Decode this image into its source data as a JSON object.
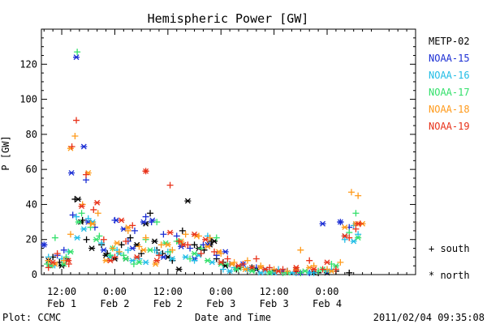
{
  "chart_data": {
    "type": "scatter",
    "title": "Hemispheric Power [GW]",
    "ylabel": "P [GW]",
    "xlabel": "Date and Time",
    "ylim": [
      0,
      140
    ],
    "yticks": [
      0,
      20,
      40,
      60,
      80,
      100,
      120
    ],
    "xlim_hours": [
      7.4,
      92
    ],
    "xticks": [
      {
        "hour": 12,
        "time": "12:00",
        "date": "Feb 1"
      },
      {
        "hour": 24,
        "time": "0:00",
        "date": "Feb 2"
      },
      {
        "hour": 36,
        "time": "12:00",
        "date": "Feb 2"
      },
      {
        "hour": 48,
        "time": "0:00",
        "date": "Feb 3"
      },
      {
        "hour": 60,
        "time": "12:00",
        "date": "Feb 3"
      },
      {
        "hour": 72,
        "time": "0:00",
        "date": "Feb 4"
      }
    ],
    "legend_position": "right",
    "marker_legend": {
      "south": "+ south",
      "north": "* north"
    },
    "series": [
      {
        "name": "METP-02",
        "color": "#000000"
      },
      {
        "name": "NOAA-15",
        "color": "#1c2fd4"
      },
      {
        "name": "NOAA-16",
        "color": "#22bde6"
      },
      {
        "name": "NOAA-17",
        "color": "#33e06b"
      },
      {
        "name": "NOAA-18",
        "color": "#ff9a1a"
      },
      {
        "name": "NOAA-19",
        "color": "#e8321a"
      }
    ],
    "points": {
      "METP-02": {
        "south": [
          [
            10,
            10
          ],
          [
            11.5,
            7
          ],
          [
            13,
            9
          ],
          [
            15,
            43
          ],
          [
            16.7,
            31
          ],
          [
            17.6,
            20
          ],
          [
            21,
            17
          ],
          [
            22.3,
            12
          ],
          [
            25.5,
            17
          ],
          [
            27.5,
            21
          ],
          [
            30,
            12
          ],
          [
            32,
            35
          ],
          [
            33.5,
            14
          ],
          [
            34.8,
            12
          ],
          [
            37,
            8
          ],
          [
            39.3,
            25
          ],
          [
            42,
            17
          ],
          [
            44.2,
            14
          ],
          [
            45.8,
            19
          ],
          [
            47,
            9
          ],
          [
            48.5,
            7
          ],
          [
            51.5,
            3
          ],
          [
            55,
            4
          ],
          [
            59,
            2
          ],
          [
            63,
            2
          ],
          [
            66,
            1
          ],
          [
            70,
            1
          ],
          [
            74,
            2
          ],
          [
            77,
            1
          ]
        ],
        "north": [
          [
            9,
            8
          ],
          [
            12,
            5
          ],
          [
            15.7,
            43
          ],
          [
            16.3,
            30
          ],
          [
            18.8,
            15
          ],
          [
            22,
            11
          ],
          [
            24,
            9
          ],
          [
            26.5,
            9
          ],
          [
            29,
            17
          ],
          [
            31,
            29
          ],
          [
            33,
            19
          ],
          [
            36,
            10
          ],
          [
            38.5,
            3
          ],
          [
            40.5,
            42
          ],
          [
            43,
            15
          ],
          [
            45.5,
            17
          ],
          [
            46.5,
            19
          ],
          [
            49,
            5
          ],
          [
            52,
            4
          ],
          [
            56,
            3
          ],
          [
            60,
            2
          ],
          [
            65,
            2
          ],
          [
            69,
            1
          ],
          [
            72,
            1
          ]
        ]
      },
      "NOAA-15": {
        "south": [
          [
            8,
            17
          ],
          [
            11,
            11
          ],
          [
            12.5,
            14
          ],
          [
            14.5,
            34
          ],
          [
            17.5,
            54
          ],
          [
            19.5,
            27
          ],
          [
            24,
            31
          ],
          [
            27,
            19
          ],
          [
            28.5,
            25
          ],
          [
            31,
            33
          ],
          [
            32.3,
            30
          ],
          [
            35,
            23
          ],
          [
            38,
            22
          ],
          [
            41,
            15
          ],
          [
            44,
            17
          ],
          [
            47,
            11
          ],
          [
            50,
            6
          ],
          [
            52.5,
            4
          ],
          [
            56,
            4
          ],
          [
            59,
            2
          ],
          [
            63,
            2
          ],
          [
            68,
            1
          ],
          [
            72,
            2
          ],
          [
            75,
            30
          ],
          [
            77,
            27
          ]
        ],
        "north": [
          [
            8,
            17
          ],
          [
            14.2,
            58
          ],
          [
            15.3,
            124
          ],
          [
            17,
            73
          ],
          [
            18,
            30
          ],
          [
            21.5,
            14
          ],
          [
            24.3,
            31
          ],
          [
            26,
            26
          ],
          [
            28,
            15
          ],
          [
            30.5,
            30
          ],
          [
            32.5,
            31
          ],
          [
            35,
            10
          ],
          [
            39,
            16
          ],
          [
            42,
            9
          ],
          [
            45,
            17
          ],
          [
            49,
            13
          ],
          [
            53,
            6
          ],
          [
            58,
            3
          ],
          [
            62,
            2
          ],
          [
            66,
            1
          ],
          [
            71,
            29
          ],
          [
            75,
            30
          ]
        ]
      },
      "NOAA-16": {
        "south": [
          [
            9,
            10
          ],
          [
            12,
            9
          ],
          [
            13.5,
            13
          ],
          [
            15.3,
            33
          ],
          [
            18,
            32
          ],
          [
            21,
            18
          ],
          [
            24.5,
            14
          ],
          [
            27,
            14
          ],
          [
            29.5,
            9
          ],
          [
            33,
            14
          ],
          [
            36,
            13
          ],
          [
            39,
            18
          ],
          [
            42,
            8
          ],
          [
            45,
            22
          ],
          [
            48.5,
            3
          ],
          [
            51,
            4
          ],
          [
            54,
            3
          ],
          [
            58,
            2
          ],
          [
            61,
            3
          ],
          [
            65,
            1
          ],
          [
            69,
            1
          ],
          [
            73,
            3
          ],
          [
            76,
            20
          ],
          [
            78,
            28
          ],
          [
            79,
            23
          ]
        ],
        "north": [
          [
            10,
            5
          ],
          [
            15.5,
            21
          ],
          [
            17,
            26
          ],
          [
            19,
            30
          ],
          [
            23,
            10
          ],
          [
            25,
            12
          ],
          [
            28,
            8
          ],
          [
            31,
            7
          ],
          [
            34,
            12
          ],
          [
            37,
            9
          ],
          [
            40,
            10
          ],
          [
            43,
            11
          ],
          [
            46,
            7
          ],
          [
            50,
            2
          ],
          [
            54,
            3
          ],
          [
            57,
            1
          ],
          [
            60,
            1
          ],
          [
            64,
            1
          ],
          [
            68,
            1
          ],
          [
            72,
            2
          ],
          [
            76,
            22
          ],
          [
            78,
            19
          ]
        ]
      },
      "NOAA-17": {
        "south": [
          [
            8.7,
            6
          ],
          [
            10.5,
            21
          ],
          [
            13,
            10
          ],
          [
            15.5,
            127
          ],
          [
            16.5,
            35
          ],
          [
            18.5,
            27
          ],
          [
            20.5,
            22
          ],
          [
            23,
            11
          ],
          [
            26,
            11
          ],
          [
            28.3,
            6
          ],
          [
            31,
            20
          ],
          [
            33.5,
            30
          ],
          [
            36.5,
            13
          ],
          [
            38,
            19
          ],
          [
            41,
            9
          ],
          [
            43.5,
            15
          ],
          [
            47,
            21
          ],
          [
            49.5,
            6
          ],
          [
            52.5,
            4
          ],
          [
            55.5,
            3
          ],
          [
            59,
            2
          ],
          [
            62,
            1
          ],
          [
            66,
            1
          ],
          [
            70,
            2
          ],
          [
            73,
            6
          ],
          [
            77,
            24
          ],
          [
            78.5,
            35
          ]
        ],
        "north": [
          [
            9.5,
            5
          ],
          [
            12.5,
            6
          ],
          [
            14,
            13
          ],
          [
            15.8,
            30
          ],
          [
            19.8,
            20
          ],
          [
            23.5,
            15
          ],
          [
            26.5,
            9
          ],
          [
            29.5,
            7
          ],
          [
            32,
            14
          ],
          [
            35.5,
            18
          ],
          [
            38.5,
            19
          ],
          [
            42,
            12
          ],
          [
            45,
            8
          ],
          [
            48,
            6
          ],
          [
            51.5,
            3
          ],
          [
            55,
            2
          ],
          [
            59,
            1
          ],
          [
            63,
            1
          ],
          [
            67,
            2
          ],
          [
            71,
            3
          ],
          [
            74,
            5
          ],
          [
            79,
            21
          ]
        ]
      },
      "NOAA-18": {
        "south": [
          [
            9,
            8
          ],
          [
            12.5,
            8
          ],
          [
            14,
            23
          ],
          [
            15,
            79
          ],
          [
            16.7,
            40
          ],
          [
            18.5,
            29
          ],
          [
            20.2,
            35
          ],
          [
            23.5,
            15
          ],
          [
            25,
            13
          ],
          [
            27,
            25
          ],
          [
            29.5,
            16
          ],
          [
            31,
            21
          ],
          [
            34.5,
            17
          ],
          [
            37,
            14
          ],
          [
            40,
            23
          ],
          [
            43,
            22
          ],
          [
            45.5,
            21
          ],
          [
            48,
            12
          ],
          [
            51,
            7
          ],
          [
            54,
            8
          ],
          [
            57,
            5
          ],
          [
            60,
            3
          ],
          [
            63,
            2
          ],
          [
            66,
            14
          ],
          [
            69,
            5
          ],
          [
            72,
            3
          ],
          [
            75,
            7
          ],
          [
            77.5,
            47
          ],
          [
            79,
            45
          ]
        ],
        "north": [
          [
            10.5,
            6
          ],
          [
            14,
            72
          ],
          [
            18,
            58
          ],
          [
            19,
            29
          ],
          [
            22,
            8
          ],
          [
            24.5,
            18
          ],
          [
            27,
            27
          ],
          [
            30.5,
            14
          ],
          [
            33.2,
            6
          ],
          [
            36,
            17
          ],
          [
            39,
            19
          ],
          [
            42.5,
            22
          ],
          [
            45,
            16
          ],
          [
            47.5,
            13
          ],
          [
            50.5,
            6
          ],
          [
            53.5,
            3
          ],
          [
            57,
            4
          ],
          [
            61,
            2
          ],
          [
            65,
            3
          ],
          [
            68,
            4
          ],
          [
            73,
            2
          ],
          [
            76,
            27
          ],
          [
            78.5,
            29
          ],
          [
            80,
            29
          ]
        ]
      },
      "NOAA-19": {
        "south": [
          [
            9,
            4
          ],
          [
            11,
            12
          ],
          [
            13.6,
            6
          ],
          [
            14.3,
            73
          ],
          [
            15.3,
            88
          ],
          [
            17.5,
            57
          ],
          [
            19.2,
            37
          ],
          [
            21.5,
            20
          ],
          [
            24,
            10
          ],
          [
            26.5,
            19
          ],
          [
            28,
            28
          ],
          [
            31,
            59
          ],
          [
            34,
            11
          ],
          [
            36.5,
            51
          ],
          [
            38.5,
            19
          ],
          [
            40.5,
            17
          ],
          [
            43.5,
            12
          ],
          [
            46.5,
            13
          ],
          [
            49.5,
            9
          ],
          [
            53,
            6
          ],
          [
            56,
            9
          ],
          [
            59,
            4
          ],
          [
            62,
            3
          ],
          [
            65,
            2
          ],
          [
            68,
            8
          ],
          [
            71,
            3
          ],
          [
            74,
            3
          ],
          [
            77,
            21
          ],
          [
            78.5,
            26
          ],
          [
            79.5,
            29
          ]
        ],
        "north": [
          [
            10,
            7
          ],
          [
            13.5,
            8
          ],
          [
            16.5,
            39
          ],
          [
            20,
            41
          ],
          [
            23,
            8
          ],
          [
            25.5,
            31
          ],
          [
            29,
            10
          ],
          [
            31,
            59
          ],
          [
            33.5,
            8
          ],
          [
            36.5,
            24
          ],
          [
            39.5,
            17
          ],
          [
            42,
            23
          ],
          [
            44.5,
            20
          ],
          [
            48,
            7
          ],
          [
            52,
            5
          ],
          [
            55,
            4
          ],
          [
            58,
            3
          ],
          [
            61,
            2
          ],
          [
            65,
            4
          ],
          [
            69,
            3
          ],
          [
            72,
            7
          ],
          [
            76,
            22
          ],
          [
            79,
            29
          ]
        ]
      }
    }
  },
  "footer": {
    "plot_label": "Plot: CCMC",
    "timestamp": "2011/02/04 09:35:08"
  }
}
